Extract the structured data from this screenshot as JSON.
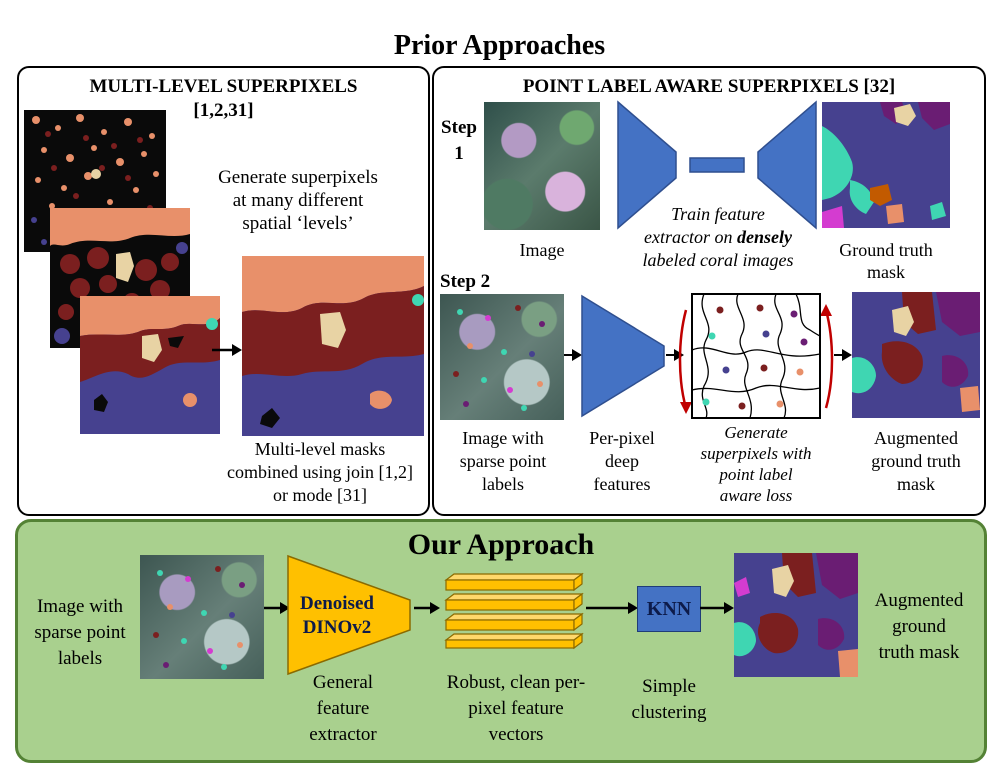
{
  "title": "Prior Approaches",
  "left_panel": {
    "title_line1": "MULTI-LEVEL SUPERPIXELS",
    "title_line2": "[1,2,31]",
    "generate_text": [
      "Generate superpixels",
      "at many different",
      "spatial ‘levels’"
    ],
    "combined_text": [
      "Multi-level masks",
      "combined using join [1,2]",
      "or mode [31]"
    ]
  },
  "right_panel": {
    "title": "POINT LABEL AWARE SUPERPIXELS [32]",
    "step1": [
      "Step",
      "1"
    ],
    "step1_image_caption": "Image",
    "train_text": {
      "line1": "Train feature",
      "line2": "extractor on ",
      "bold_word": "densely",
      "line3": "labeled coral images"
    },
    "gt_caption": [
      "Ground truth",
      "mask"
    ],
    "step2": "Step 2",
    "sparse_caption": [
      "Image with",
      "sparse point",
      "labels"
    ],
    "perpixel_caption": [
      "Per-pixel",
      "deep",
      "features"
    ],
    "generate_caption": [
      "Generate",
      "superpixels with",
      "point label",
      "aware loss"
    ],
    "augmented_caption": [
      "Augmented",
      "ground truth",
      "mask"
    ]
  },
  "bottom_panel": {
    "title": "Our Approach",
    "input_caption": [
      "Image with",
      "sparse point",
      "labels"
    ],
    "extractor_label": [
      "Denoised",
      "DINOv2"
    ],
    "extractor_caption": [
      "General",
      "feature",
      "extractor"
    ],
    "features_caption": [
      "Robust, clean per-",
      "pixel feature",
      "vectors"
    ],
    "knn_label": "KNN",
    "knn_caption": [
      "Simple",
      "clustering"
    ],
    "output_caption": [
      "Augmented",
      "ground",
      "truth mask"
    ]
  },
  "colors": {
    "encoder_blue": "#4472c4",
    "dino_yellow": "#ffc000",
    "bottom_bg": "#a9d08e",
    "bottom_border": "#548235",
    "mask_navy": "#46418f",
    "mask_salmon": "#e8906a",
    "mask_maroon": "#7b1f1f",
    "mask_beige": "#e8d3a4",
    "mask_purple": "#6a1d73",
    "mask_teal": "#3fd6b2",
    "arrow_red": "#c00000"
  }
}
